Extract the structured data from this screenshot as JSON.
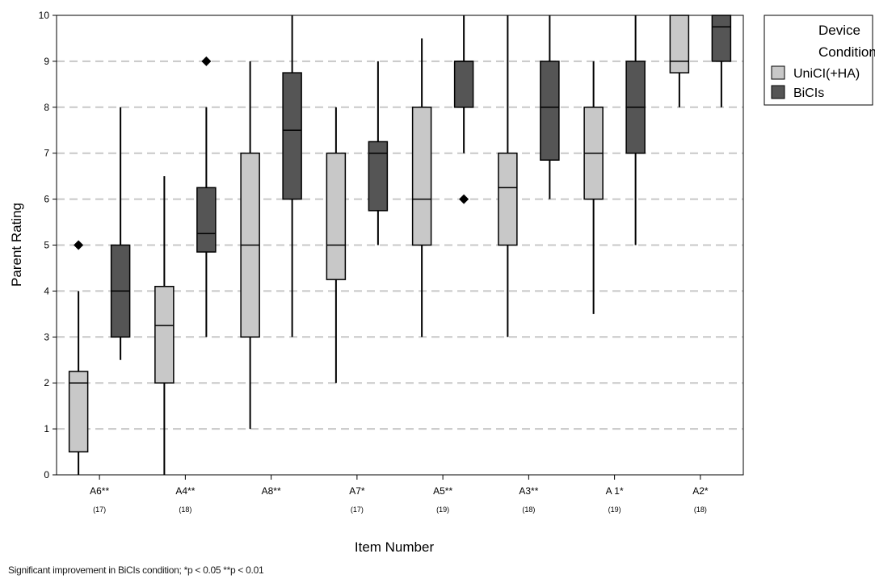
{
  "chart_data": {
    "type": "boxplot",
    "ylabel": "Parent Rating",
    "xlabel": "Item Number",
    "ylim": [
      0,
      10
    ],
    "yticks": [
      0,
      1,
      2,
      3,
      4,
      5,
      6,
      7,
      8,
      9,
      10
    ],
    "grid": "horizontal dashed",
    "legend": {
      "title": [
        "Device",
        "Condition"
      ],
      "position": "top-right-outside",
      "entries": [
        "UniCI(+HA)",
        "BiCIs"
      ]
    },
    "colors": {
      "UniCI(+HA)": "#c8c8c8",
      "BiCIs": "#555555"
    },
    "categories": [
      "A6**",
      "A4**",
      "A8**",
      "A7*",
      "A5**",
      "A3**",
      "A 1*",
      "A2*"
    ],
    "n_labels": [
      "(17)",
      "(18)",
      "",
      "(17)",
      "(19)",
      "(18)",
      "(19)",
      "(18)"
    ],
    "series": [
      {
        "name": "UniCI(+HA)",
        "boxes": [
          {
            "min": 0,
            "q1": 0.5,
            "median": 2,
            "q3": 2.25,
            "max": 4,
            "outliers": [
              5
            ]
          },
          {
            "min": 0,
            "q1": 2,
            "median": 3.25,
            "q3": 4.1,
            "max": 6.5,
            "outliers": []
          },
          {
            "min": 1,
            "q1": 3,
            "median": 5,
            "q3": 7,
            "max": 9,
            "outliers": []
          },
          {
            "min": 2,
            "q1": 4.25,
            "median": 5,
            "q3": 7,
            "max": 8,
            "outliers": []
          },
          {
            "min": 3,
            "q1": 5,
            "median": 6,
            "q3": 8,
            "max": 9.5,
            "outliers": []
          },
          {
            "min": 3,
            "q1": 5,
            "median": 6.25,
            "q3": 7,
            "max": 10,
            "outliers": []
          },
          {
            "min": 3.5,
            "q1": 6,
            "median": 7,
            "q3": 8,
            "max": 9,
            "outliers": []
          },
          {
            "min": 8,
            "q1": 8.75,
            "median": 9,
            "q3": 10,
            "max": 10,
            "outliers": []
          }
        ]
      },
      {
        "name": "BiCIs",
        "boxes": [
          {
            "min": 2.5,
            "q1": 3,
            "median": 4,
            "q3": 5,
            "max": 8,
            "outliers": []
          },
          {
            "min": 3,
            "q1": 4.85,
            "median": 5.25,
            "q3": 6.25,
            "max": 8,
            "outliers": [
              9
            ]
          },
          {
            "min": 3,
            "q1": 6,
            "median": 7.5,
            "q3": 8.75,
            "max": 10,
            "outliers": []
          },
          {
            "min": 5,
            "q1": 5.75,
            "median": 7,
            "q3": 7.25,
            "max": 9,
            "outliers": []
          },
          {
            "min": 7,
            "q1": 8,
            "median": 9,
            "q3": 9,
            "max": 10,
            "outliers": [
              6
            ]
          },
          {
            "min": 6,
            "q1": 6.85,
            "median": 8,
            "q3": 9,
            "max": 10,
            "outliers": []
          },
          {
            "min": 5,
            "q1": 7,
            "median": 8,
            "q3": 9,
            "max": 10,
            "outliers": []
          },
          {
            "min": 8,
            "q1": 9,
            "median": 9.75,
            "q3": 10,
            "max": 10,
            "outliers": []
          }
        ]
      }
    ],
    "footnote": "Significant improvement in BiCIs condition;   *p < 0.05    **p < 0.01"
  }
}
